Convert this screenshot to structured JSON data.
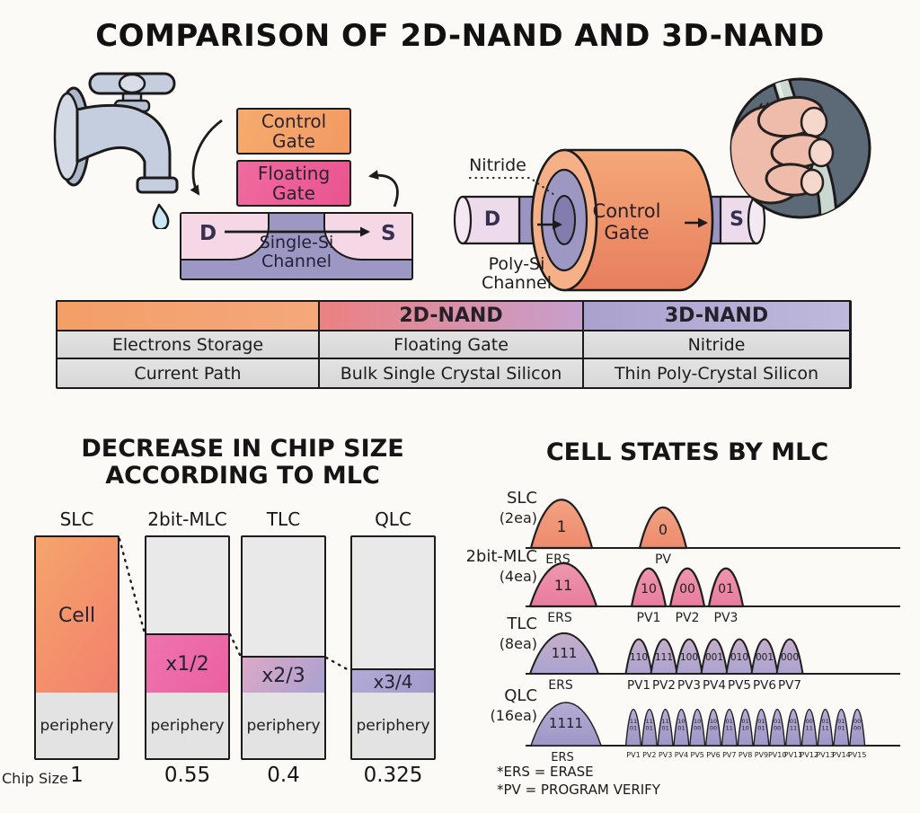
{
  "title": "COMPARISON OF 2D-NAND AND 3D-NAND",
  "palette": {
    "orange": "#f4a168",
    "pink": "#ec5b94",
    "purple": "#9d97c3",
    "light_pink": "#f5d7e6",
    "gray_cell": "#dcdcdc",
    "outline": "#1b1b1b"
  },
  "nand2d": {
    "control_gate": "Control\nGate",
    "floating_gate": "Floating\nGate",
    "drain": "D",
    "source": "S",
    "channel": "Single-Si\nChannel"
  },
  "nand3d": {
    "nitride": "Nitride",
    "control_gate": "Control\nGate",
    "drain": "D",
    "source": "S",
    "channel": "Poly-Si\nChannel"
  },
  "comparison_table": {
    "headers": [
      "",
      "2D-NAND",
      "3D-NAND"
    ],
    "rows": [
      [
        "Electrons Storage",
        "Floating Gate",
        "Nitride"
      ],
      [
        "Current Path",
        "Bulk Single Crystal Silicon",
        "Thin Poly-Crystal Silicon"
      ]
    ]
  },
  "chart_data": [
    {
      "type": "bar",
      "title": "DECREASE IN CHIP SIZE\nACCORDING TO MLC",
      "x_axis_label": "Chip Size",
      "categories": [
        "SLC",
        "2bit-MLC",
        "TLC",
        "QLC"
      ],
      "chip_sizes": [
        "1",
        "0.55",
        "0.4",
        "0.325"
      ],
      "bars": [
        {
          "category": "SLC",
          "cell_label": "Cell",
          "cell_fraction": 0.704,
          "periphery_label": "periphery",
          "chip_size": "1",
          "fill": [
            "#f5a56b",
            "#f3806c"
          ]
        },
        {
          "category": "2bit-MLC",
          "cell_label": "x1/2",
          "cell_fraction": 0.276,
          "periphery_label": "periphery",
          "chip_size": "0.55",
          "fill": [
            "#ee74ae",
            "#eb60a0"
          ]
        },
        {
          "category": "TLC",
          "cell_label": "x2/3",
          "cell_fraction": 0.176,
          "periphery_label": "periphery",
          "chip_size": "0.4",
          "fill": [
            "#dca9c6",
            "#a9a1d1"
          ]
        },
        {
          "category": "QLC",
          "cell_label": "x3/4",
          "cell_fraction": 0.12,
          "periphery_label": "periphery",
          "chip_size": "0.325",
          "fill": [
            "#b3abd6",
            "#a29ac9"
          ]
        }
      ]
    },
    {
      "type": "distribution",
      "title": "CELL STATES BY MLC",
      "rows": [
        {
          "label": "SLC",
          "sublabel": "(2ea)",
          "color": [
            "#f2a281",
            "#ee8a6e"
          ],
          "ers": {
            "bits": "1",
            "axis_label": "ERS"
          },
          "pvs": [
            {
              "bits": "0",
              "axis_label": "PV"
            }
          ]
        },
        {
          "label": "2bit-MLC",
          "sublabel": "(4ea)",
          "color": [
            "#ef97ae",
            "#e87c9e"
          ],
          "ers": {
            "bits": "11",
            "axis_label": "ERS"
          },
          "pvs": [
            {
              "bits": "10",
              "axis_label": "PV1"
            },
            {
              "bits": "00",
              "axis_label": "PV2"
            },
            {
              "bits": "01",
              "axis_label": "PV3"
            }
          ]
        },
        {
          "label": "TLC",
          "sublabel": "(8ea)",
          "color": [
            "#c6aecb",
            "#aba3cf"
          ],
          "ers": {
            "bits": "111",
            "axis_label": "ERS"
          },
          "pvs": [
            {
              "bits": "110",
              "axis_label": "PV1"
            },
            {
              "bits": "111",
              "axis_label": "PV2"
            },
            {
              "bits": "100",
              "axis_label": "PV3"
            },
            {
              "bits": "001",
              "axis_label": "PV4"
            },
            {
              "bits": "010",
              "axis_label": "PV5"
            },
            {
              "bits": "001",
              "axis_label": "PV6"
            },
            {
              "bits": "000",
              "axis_label": "PV7"
            }
          ]
        },
        {
          "label": "QLC",
          "sublabel": "(16ea)",
          "color": [
            "#b5add5",
            "#9e96c6"
          ],
          "ers": {
            "bits": "1111",
            "axis_label": "ERS"
          },
          "pvs": [
            {
              "bits": "11\n01",
              "axis_label": "PV1"
            },
            {
              "bits": "11\n01",
              "axis_label": "PV2"
            },
            {
              "bits": "11\n01",
              "axis_label": "PV3"
            },
            {
              "bits": "10\n01",
              "axis_label": "PV4"
            },
            {
              "bits": "10\n00",
              "axis_label": "PV5"
            },
            {
              "bits": "10\n00",
              "axis_label": "PV6"
            },
            {
              "bits": "01\n11",
              "axis_label": "PV7"
            },
            {
              "bits": "01\n10",
              "axis_label": "PV8"
            },
            {
              "bits": "01\n01",
              "axis_label": "PV9"
            },
            {
              "bits": "01\n00",
              "axis_label": "PV10"
            },
            {
              "bits": "01\n11",
              "axis_label": "PV11"
            },
            {
              "bits": "00\n11",
              "axis_label": "PV12"
            },
            {
              "bits": "01\n11",
              "axis_label": "PV13"
            },
            {
              "bits": "01\n01",
              "axis_label": "PV14"
            },
            {
              "bits": "00\n00",
              "axis_label": "PV15"
            }
          ]
        }
      ],
      "footnotes": [
        "*ERS = ERASE",
        "*PV = PROGRAM VERIFY"
      ]
    }
  ]
}
